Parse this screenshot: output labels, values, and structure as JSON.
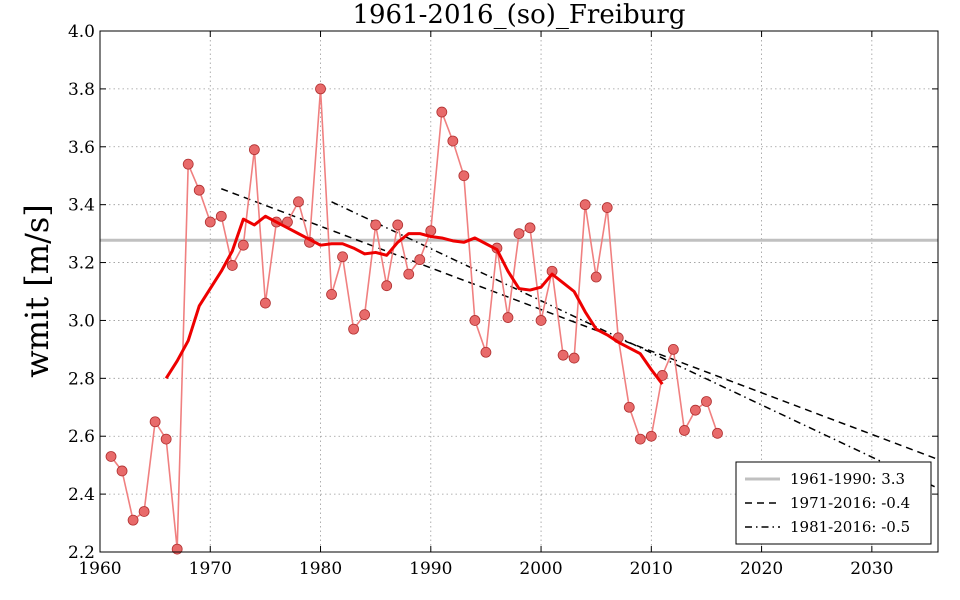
{
  "chart_data": {
    "type": "line",
    "title": "1961-2016_(so)_Freiburg",
    "xlabel": "",
    "ylabel": "wmit [m/s]",
    "xlim": [
      1960,
      2036
    ],
    "ylim": [
      2.2,
      4.0
    ],
    "grid": true,
    "legend_position": "bottom-right",
    "xticks": [
      1960,
      1970,
      1980,
      1990,
      2000,
      2010,
      2020,
      2030
    ],
    "yticks": [
      "2.2",
      "2.4",
      "2.6",
      "2.8",
      "3.0",
      "3.2",
      "3.4",
      "3.6",
      "3.8",
      "4.0"
    ],
    "observations": {
      "color": "#e05050",
      "x": [
        1961,
        1962,
        1963,
        1964,
        1965,
        1966,
        1967,
        1968,
        1969,
        1970,
        1971,
        1972,
        1973,
        1974,
        1975,
        1976,
        1977,
        1978,
        1979,
        1980,
        1981,
        1982,
        1983,
        1984,
        1985,
        1986,
        1987,
        1988,
        1989,
        1990,
        1991,
        1992,
        1993,
        1994,
        1995,
        1996,
        1997,
        1998,
        1999,
        2000,
        2001,
        2002,
        2003,
        2004,
        2005,
        2006,
        2007,
        2008,
        2009,
        2010,
        2011,
        2012,
        2013,
        2014,
        2015,
        2016
      ],
      "y": [
        2.53,
        2.48,
        2.31,
        2.34,
        2.65,
        2.59,
        2.21,
        3.54,
        3.45,
        3.34,
        3.36,
        3.19,
        3.26,
        3.59,
        3.06,
        3.34,
        3.34,
        3.41,
        3.27,
        3.8,
        3.09,
        3.22,
        2.97,
        3.02,
        3.33,
        3.12,
        3.33,
        3.16,
        3.21,
        3.31,
        3.72,
        3.62,
        3.5,
        3.0,
        2.89,
        3.25,
        3.01,
        3.3,
        3.32,
        3.0,
        3.17,
        2.88,
        2.87,
        3.4,
        3.15,
        3.39,
        2.94,
        2.7,
        2.59,
        2.6,
        2.81,
        2.9,
        2.62,
        2.69,
        2.72,
        2.61
      ]
    },
    "smoothed": {
      "color": "#ee0000",
      "x": [
        1966,
        1967,
        1968,
        1969,
        1970,
        1971,
        1972,
        1973,
        1974,
        1975,
        1976,
        1977,
        1978,
        1979,
        1980,
        1981,
        1982,
        1983,
        1984,
        1985,
        1986,
        1987,
        1988,
        1989,
        1990,
        1991,
        1992,
        1993,
        1994,
        1995,
        1996,
        1997,
        1998,
        1999,
        2000,
        2001,
        2002,
        2003,
        2004,
        2005,
        2006,
        2007,
        2008,
        2009,
        2010,
        2011
      ],
      "y": [
        2.8,
        2.86,
        2.93,
        3.05,
        3.11,
        3.17,
        3.24,
        3.35,
        3.33,
        3.36,
        3.34,
        3.32,
        3.3,
        3.28,
        3.26,
        3.265,
        3.265,
        3.25,
        3.23,
        3.235,
        3.225,
        3.27,
        3.3,
        3.3,
        3.29,
        3.285,
        3.275,
        3.27,
        3.285,
        3.265,
        3.245,
        3.17,
        3.11,
        3.105,
        3.115,
        3.16,
        3.13,
        3.1,
        3.03,
        2.97,
        2.95,
        2.925,
        2.905,
        2.885,
        2.83,
        2.78
      ]
    },
    "reference_line": {
      "label": "1961-1990: 3.3",
      "y": 3.277,
      "color": "#c0c0c0"
    },
    "trend_lines": [
      {
        "label": "1971-2016: -0.4",
        "x": [
          1971,
          2036
        ],
        "y": [
          3.455,
          2.52
        ],
        "style": "dashed"
      },
      {
        "label": "1981-2016: -0.5",
        "x": [
          1981,
          2036
        ],
        "y": [
          3.41,
          2.42
        ],
        "style": "dashdot"
      }
    ]
  }
}
